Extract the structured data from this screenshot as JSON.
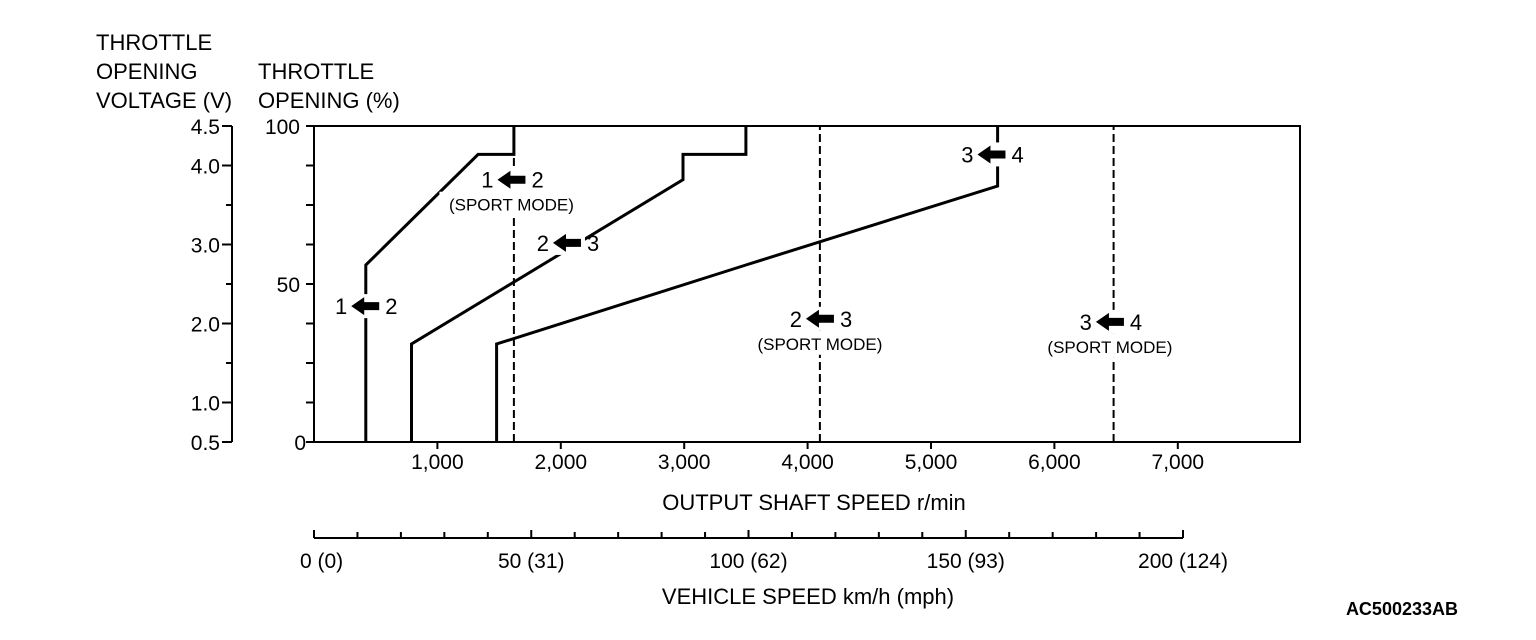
{
  "chart_data": {
    "type": "line",
    "left_axis_title": [
      "THROTTLE",
      "OPENING",
      "VOLTAGE (V)"
    ],
    "throttle_axis_title": [
      "THROTTLE",
      "OPENING (%)"
    ],
    "xlabel": "OUTPUT SHAFT SPEED r/min",
    "vehicle_axis_label": "VEHICLE SPEED km/h (mph)",
    "figure_code": "AC500233AB",
    "xlim": [
      0,
      8000
    ],
    "ylim": [
      0,
      100
    ],
    "x_ticks": [
      {
        "value": 1000,
        "label": "1,000"
      },
      {
        "value": 2000,
        "label": "2,000"
      },
      {
        "value": 3000,
        "label": "3,000"
      },
      {
        "value": 4000,
        "label": "4,000"
      },
      {
        "value": 5000,
        "label": "5,000"
      },
      {
        "value": 6000,
        "label": "6,000"
      },
      {
        "value": 7000,
        "label": "7,000"
      }
    ],
    "y_ticks": [
      {
        "value": 0,
        "label": "0"
      },
      {
        "value": 50,
        "label": "50"
      },
      {
        "value": 100,
        "label": "100"
      }
    ],
    "voltage_range": [
      0.5,
      4.5
    ],
    "voltage_ticks": [
      {
        "value": 0.5,
        "label": "0.5"
      },
      {
        "value": 1.0,
        "label": "1.0"
      },
      {
        "value": 2.0,
        "label": "2.0"
      },
      {
        "value": 3.0,
        "label": "3.0"
      },
      {
        "value": 4.0,
        "label": "4.0"
      },
      {
        "value": 4.5,
        "label": "4.5"
      }
    ],
    "vehicle_speed_range": [
      0,
      200
    ],
    "vehicle_speed_ticks": [
      {
        "value": 0,
        "label": "0 (0)"
      },
      {
        "value": 50,
        "label": "50 (31)"
      },
      {
        "value": 100,
        "label": "100 (62)"
      },
      {
        "value": 150,
        "label": "150 (93)"
      },
      {
        "value": 200,
        "label": "200 (124)"
      }
    ],
    "series": [
      {
        "name": "1 ← 2",
        "style": "solid",
        "points": [
          [
            420,
            0
          ],
          [
            420,
            56
          ],
          [
            1330,
            91
          ],
          [
            1620,
            91
          ],
          [
            1620,
            100
          ]
        ]
      },
      {
        "name": "2 ← 3",
        "style": "solid",
        "points": [
          [
            790,
            0
          ],
          [
            790,
            31
          ],
          [
            2990,
            83
          ],
          [
            2990,
            91
          ],
          [
            3500,
            91
          ],
          [
            3500,
            100
          ]
        ]
      },
      {
        "name": "3 ← 4",
        "style": "solid",
        "points": [
          [
            1480,
            0
          ],
          [
            1480,
            31
          ],
          [
            3500,
            56
          ],
          [
            5540,
            81
          ],
          [
            5540,
            100
          ]
        ]
      },
      {
        "name": "1 ← 2 (SPORT MODE)",
        "style": "dashed",
        "points": [
          [
            1620,
            0
          ],
          [
            1620,
            100
          ]
        ]
      },
      {
        "name": "2 ← 3 (SPORT MODE)",
        "style": "dashed",
        "points": [
          [
            4100,
            0
          ],
          [
            4100,
            100
          ]
        ]
      },
      {
        "name": "3 ← 4 (SPORT MODE)",
        "style": "dashed",
        "points": [
          [
            6480,
            0
          ],
          [
            6480,
            100
          ]
        ]
      }
    ],
    "annotations": [
      {
        "from": "1",
        "to": "2",
        "x": 415,
        "y": 43,
        "mode": ""
      },
      {
        "from": "2",
        "to": "3",
        "x": 2050,
        "y": 63,
        "mode": ""
      },
      {
        "from": "1",
        "to": "2",
        "x": 1600,
        "y": 83,
        "mode": "(SPORT MODE)"
      },
      {
        "from": "3",
        "to": "4",
        "x": 5490,
        "y": 91,
        "mode": ""
      },
      {
        "from": "2",
        "to": "3",
        "x": 4100,
        "y": 39,
        "mode": "(SPORT MODE)"
      },
      {
        "from": "3",
        "to": "4",
        "x": 6450,
        "y": 38,
        "mode": "(SPORT MODE)"
      }
    ]
  }
}
